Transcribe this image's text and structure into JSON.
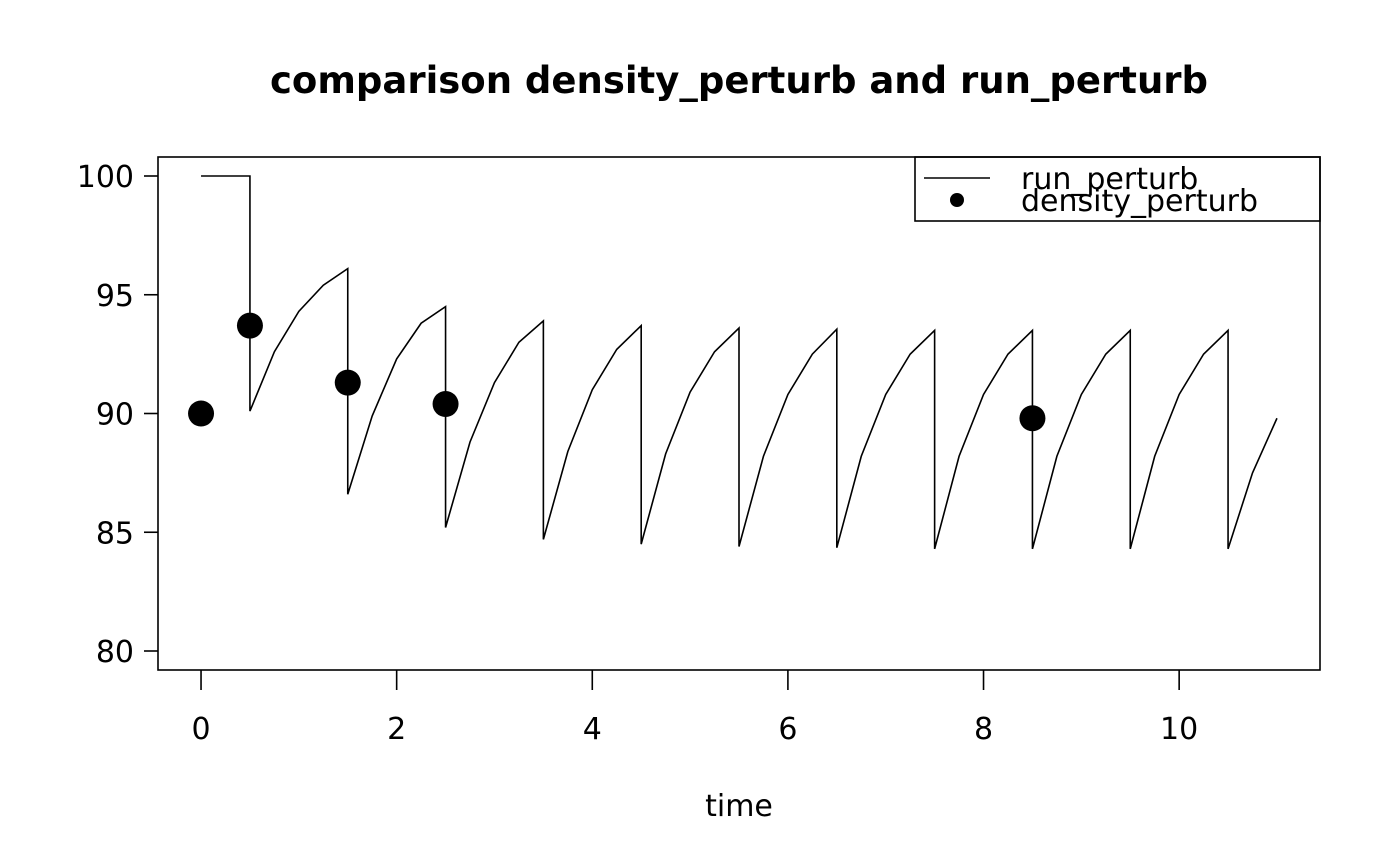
{
  "chart_data": {
    "type": "line",
    "title": "comparison density_perturb and run_perturb",
    "xlabel": "time",
    "ylabel": "",
    "xlim": [
      -0.44,
      11.44
    ],
    "ylim": [
      79.2,
      100.8
    ],
    "xticks": [
      0,
      2,
      4,
      6,
      8,
      10
    ],
    "yticks": [
      80,
      85,
      90,
      95,
      100
    ],
    "legend_position": "top-right",
    "legend": [
      {
        "label": "run_perturb",
        "symbol": "line"
      },
      {
        "label": "density_perturb",
        "symbol": "point"
      }
    ],
    "series": [
      {
        "name": "run_perturb",
        "kind": "line",
        "x": [
          0,
          0.5,
          0.5,
          0.75,
          1.0,
          1.25,
          1.5,
          1.5,
          1.75,
          2.0,
          2.25,
          2.5,
          2.5,
          2.75,
          3.0,
          3.25,
          3.5,
          3.5,
          3.75,
          4.0,
          4.25,
          4.5,
          4.5,
          4.75,
          5.0,
          5.25,
          5.5,
          5.5,
          5.75,
          6.0,
          6.25,
          6.5,
          6.5,
          6.75,
          7.0,
          7.25,
          7.5,
          7.5,
          7.75,
          8.0,
          8.25,
          8.5,
          8.5,
          8.75,
          9.0,
          9.25,
          9.5,
          9.5,
          9.75,
          10.0,
          10.25,
          10.5,
          10.5,
          10.75,
          11.0
        ],
        "y": [
          100,
          100,
          90.1,
          92.6,
          94.3,
          95.4,
          96.1,
          86.6,
          89.9,
          92.3,
          93.8,
          94.5,
          85.2,
          88.8,
          91.3,
          93.0,
          93.9,
          84.7,
          88.4,
          91.0,
          92.7,
          93.7,
          84.5,
          88.3,
          90.9,
          92.6,
          93.6,
          84.4,
          88.2,
          90.8,
          92.5,
          93.55,
          84.35,
          88.2,
          90.8,
          92.5,
          93.5,
          84.3,
          88.2,
          90.8,
          92.5,
          93.5,
          84.3,
          88.2,
          90.8,
          92.5,
          93.5,
          84.3,
          88.2,
          90.8,
          92.5,
          93.5,
          84.3,
          87.5,
          89.8
        ]
      },
      {
        "name": "density_perturb",
        "kind": "points",
        "x": [
          0,
          0.5,
          1.5,
          2.5,
          8.5
        ],
        "y": [
          90.0,
          93.7,
          91.3,
          90.4,
          89.8
        ]
      }
    ]
  }
}
